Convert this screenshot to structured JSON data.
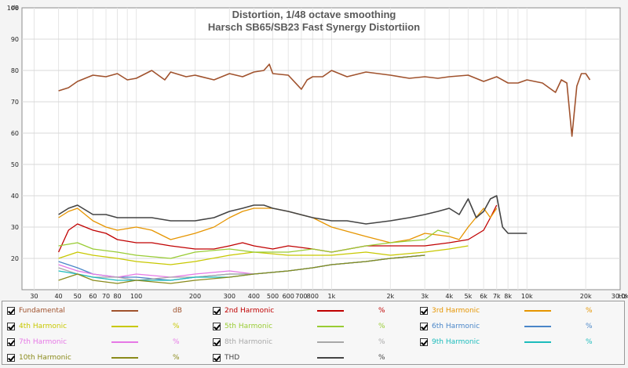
{
  "chart_data": {
    "type": "line",
    "title": "Distortion, 1/48 octave smoothing",
    "subtitle": "Harsch SB65/SB23 Fast Synergy Distortiion",
    "y_unit_label": "dB",
    "x_unit_label": "Hz",
    "xscale": "log",
    "xlim": [
      26,
      30000
    ],
    "ylim": [
      10,
      100
    ],
    "grid": true,
    "x_ticks": [
      30,
      40,
      50,
      60,
      70,
      80,
      100,
      200,
      300,
      400,
      500,
      600,
      700,
      800,
      1000,
      2000,
      3000,
      4000,
      5000,
      6000,
      7000,
      8000,
      10000,
      20000,
      30000
    ],
    "x_tick_labels": [
      "30",
      "40",
      "50",
      "60",
      "70",
      "80",
      "100",
      "200",
      "300",
      "400",
      "500",
      "600",
      "700",
      "800",
      "1k",
      "2k",
      "3k",
      "4k",
      "5k",
      "6k",
      "7k",
      "8k",
      "10k",
      "20k",
      "30.0k"
    ],
    "y_ticks": [
      20,
      30,
      40,
      50,
      60,
      70,
      80,
      90,
      100
    ],
    "y_tick_labels": [
      "20",
      "30",
      "40",
      "50",
      "60",
      "70",
      "80",
      "90",
      "100"
    ],
    "series": [
      {
        "name": "Fundamental",
        "unit": "dB",
        "color": "#a0522d",
        "x": [
          40,
          45,
          50,
          60,
          70,
          80,
          90,
          100,
          120,
          140,
          150,
          180,
          200,
          250,
          300,
          350,
          400,
          450,
          480,
          500,
          600,
          700,
          750,
          800,
          900,
          1000,
          1200,
          1500,
          2000,
          2500,
          3000,
          3500,
          4000,
          5000,
          6000,
          7000,
          8000,
          9000,
          10000,
          12000,
          14000,
          15000,
          16000,
          17000,
          18000,
          19000,
          20000,
          21000
        ],
        "y": [
          73.5,
          74.5,
          76.5,
          78.5,
          78,
          79,
          77,
          77.5,
          80,
          77,
          79.5,
          78,
          78.5,
          77,
          79,
          78,
          79.5,
          80,
          82,
          79,
          78.5,
          74,
          77,
          78,
          78,
          80,
          78,
          79.5,
          78.5,
          77.5,
          78,
          77.5,
          78,
          78.5,
          76.5,
          78,
          76,
          76,
          77,
          76,
          73,
          77,
          76,
          59,
          75,
          79,
          79,
          77
        ]
      },
      {
        "name": "2nd Harmonic",
        "unit": "%",
        "color": "#c00000",
        "x": [
          40,
          45,
          50,
          60,
          70,
          80,
          100,
          120,
          150,
          200,
          250,
          300,
          350,
          400,
          500,
          600,
          800,
          1000,
          1500,
          2000,
          3000,
          4000,
          5000,
          6000,
          6500,
          7000
        ],
        "y": [
          22,
          29,
          31,
          29,
          28,
          26,
          25,
          25,
          24,
          23,
          23,
          24,
          25,
          24,
          23,
          24,
          23,
          22,
          24,
          24,
          24,
          25,
          26,
          29,
          33,
          37
        ]
      },
      {
        "name": "3rd Harmonic",
        "unit": "%",
        "color": "#e69500",
        "x": [
          40,
          45,
          50,
          60,
          70,
          80,
          100,
          120,
          150,
          200,
          250,
          300,
          350,
          400,
          500,
          600,
          800,
          1000,
          1500,
          2000,
          2500,
          3000,
          4000,
          4500,
          5000,
          6000,
          6500,
          7000
        ],
        "y": [
          33,
          35,
          36,
          32,
          30,
          29,
          30,
          29,
          26,
          28,
          30,
          33,
          35,
          36,
          36,
          35,
          33,
          30,
          27,
          25,
          26,
          28,
          27,
          26,
          30,
          36,
          33,
          36
        ]
      },
      {
        "name": "4th Harmonic",
        "unit": "%",
        "color": "#c8c800",
        "x": [
          40,
          50,
          60,
          80,
          100,
          150,
          200,
          300,
          400,
          600,
          800,
          1000,
          1500,
          2000,
          3000,
          4000,
          5000
        ],
        "y": [
          20,
          22,
          21,
          20,
          19,
          18,
          19,
          21,
          22,
          21,
          21,
          21,
          22,
          21,
          22,
          23,
          24
        ]
      },
      {
        "name": "5th Harmonic",
        "unit": "%",
        "color": "#99cc33",
        "x": [
          40,
          50,
          60,
          80,
          100,
          150,
          200,
          300,
          400,
          600,
          800,
          1000,
          1500,
          2000,
          3000,
          3500,
          4000
        ],
        "y": [
          24,
          25,
          23,
          22,
          21,
          20,
          22,
          23,
          22,
          22,
          23,
          22,
          24,
          25,
          26,
          29,
          28
        ]
      },
      {
        "name": "6th Harmonic",
        "unit": "%",
        "color": "#4a86c8",
        "x": [
          40,
          50,
          60,
          80,
          100,
          150,
          200,
          300,
          400,
          600,
          800,
          1000,
          1500,
          2000,
          3000
        ],
        "y": [
          19,
          17,
          15,
          14,
          14,
          13,
          14,
          15,
          15,
          16,
          17,
          18,
          19,
          20,
          21
        ]
      },
      {
        "name": "7th Harmonic",
        "unit": "%",
        "color": "#e678e6",
        "x": [
          40,
          50,
          60,
          80,
          100,
          150,
          200,
          300,
          400,
          600,
          800,
          1000,
          1500,
          2000,
          3000
        ],
        "y": [
          18,
          16,
          15,
          14,
          15,
          14,
          15,
          16,
          15,
          16,
          17,
          18,
          19,
          20,
          21
        ]
      },
      {
        "name": "8th Harmonic",
        "unit": "%",
        "color": "#a8a8a8",
        "x": [
          40,
          50,
          60,
          80,
          100,
          150,
          200,
          300,
          400,
          600,
          800,
          1000,
          1500,
          2000,
          3000
        ],
        "y": [
          17,
          15,
          14,
          14,
          13,
          14,
          14,
          15,
          15,
          16,
          17,
          18,
          19,
          20,
          21
        ]
      },
      {
        "name": "9th Harmonic",
        "unit": "%",
        "color": "#1cbcbc",
        "x": [
          40,
          50,
          60,
          80,
          100,
          150,
          200,
          300,
          400,
          600,
          800,
          1000,
          1500,
          2000,
          3000
        ],
        "y": [
          16,
          15,
          14,
          13,
          13,
          13,
          14,
          14,
          15,
          16,
          17,
          18,
          19,
          20,
          21
        ]
      },
      {
        "name": "10th Harmonic",
        "unit": "%",
        "color": "#8a8a1a",
        "x": [
          40,
          50,
          60,
          80,
          100,
          150,
          200,
          300,
          400,
          600,
          800,
          1000,
          1500,
          2000,
          3000
        ],
        "y": [
          13,
          15,
          13,
          12,
          13,
          12,
          13,
          14,
          15,
          16,
          17,
          18,
          19,
          20,
          21
        ]
      },
      {
        "name": "THD",
        "unit": "%",
        "color": "#444444",
        "x": [
          40,
          45,
          50,
          60,
          70,
          80,
          100,
          120,
          150,
          200,
          250,
          300,
          350,
          400,
          450,
          500,
          600,
          800,
          1000,
          1200,
          1500,
          2000,
          2500,
          3000,
          3500,
          4000,
          4500,
          5000,
          5500,
          6000,
          6500,
          7000,
          7500,
          8000,
          9000,
          10000
        ],
        "y": [
          34,
          36,
          37,
          34,
          34,
          33,
          33,
          33,
          32,
          32,
          33,
          35,
          36,
          37,
          37,
          36,
          35,
          33,
          32,
          32,
          31,
          32,
          33,
          34,
          35,
          36,
          34,
          39,
          33,
          35,
          39,
          40,
          30,
          28,
          28,
          28
        ]
      }
    ]
  },
  "legend": {
    "items": [
      {
        "name": "Fundamental",
        "unit": "dB"
      },
      {
        "name": "2nd Harmonic",
        "unit": "%"
      },
      {
        "name": "3rd Harmonic",
        "unit": "%"
      },
      {
        "name": "4th Harmonic",
        "unit": "%"
      },
      {
        "name": "5th Harmonic",
        "unit": "%"
      },
      {
        "name": "6th Harmonic",
        "unit": "%"
      },
      {
        "name": "7th Harmonic",
        "unit": "%"
      },
      {
        "name": "8th Harmonic",
        "unit": "%"
      },
      {
        "name": "9th Harmonic",
        "unit": "%"
      },
      {
        "name": "10th Harmonic",
        "unit": "%"
      },
      {
        "name": "THD",
        "unit": "%"
      }
    ]
  }
}
